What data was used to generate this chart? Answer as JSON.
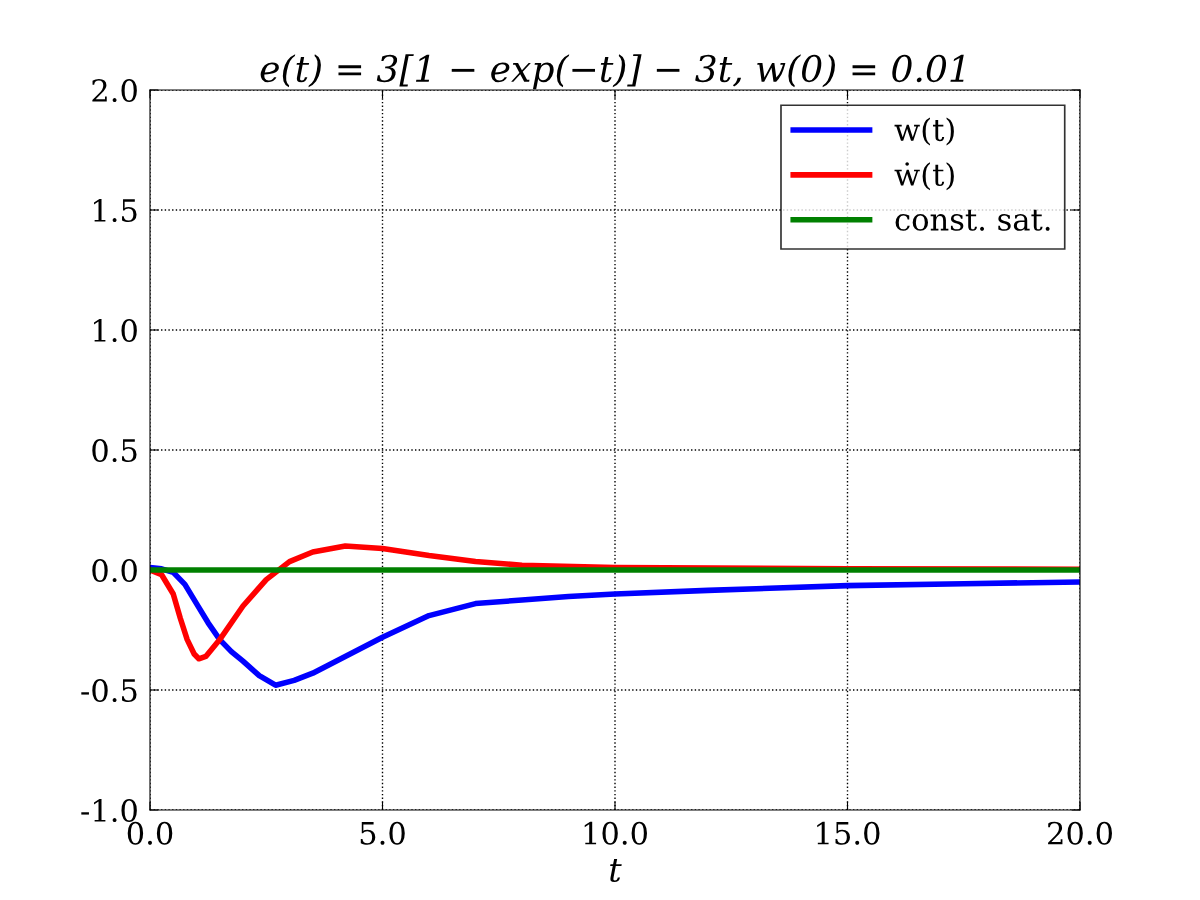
{
  "chart_data": {
    "type": "line",
    "title": "e(t) = 3[1 − exp(−t)] − 3t, w(0) = 0.01",
    "xlabel": "t",
    "series": [
      {
        "name": "w(t)",
        "color": "#0000ff",
        "x": [
          0,
          0.25,
          0.5,
          0.75,
          1,
          1.25,
          1.5,
          1.75,
          2,
          2.35,
          2.7,
          3.1,
          3.5,
          4,
          4.5,
          5,
          6,
          7,
          8,
          9,
          10,
          12,
          15,
          17.5,
          20
        ],
        "values": [
          0.01,
          0.005,
          -0.01,
          -0.06,
          -0.14,
          -0.22,
          -0.29,
          -0.34,
          -0.38,
          -0.44,
          -0.48,
          -0.46,
          -0.43,
          -0.38,
          -0.33,
          -0.28,
          -0.19,
          -0.14,
          -0.125,
          -0.11,
          -0.1,
          -0.085,
          -0.065,
          -0.057,
          -0.05
        ]
      },
      {
        "name": "ẇ(t)",
        "color": "#ff0000",
        "x": [
          0,
          0.25,
          0.5,
          0.65,
          0.8,
          0.95,
          1.05,
          1.2,
          1.5,
          2,
          2.5,
          3,
          3.5,
          4.2,
          5,
          6,
          7,
          8,
          10,
          15,
          20
        ],
        "values": [
          0,
          -0.02,
          -0.1,
          -0.2,
          -0.29,
          -0.35,
          -0.37,
          -0.36,
          -0.29,
          -0.15,
          -0.04,
          0.035,
          0.075,
          0.1,
          0.09,
          0.06,
          0.035,
          0.02,
          0.01,
          0.005,
          0.003
        ]
      },
      {
        "name": "const. sat.",
        "color": "#008000",
        "x": [
          0,
          20
        ],
        "values": [
          0,
          0
        ]
      }
    ],
    "xlim": [
      0,
      20
    ],
    "ylim": [
      -1,
      2
    ],
    "xticks": [
      {
        "value": 0,
        "label": "0.0"
      },
      {
        "value": 5,
        "label": "5.0"
      },
      {
        "value": 10,
        "label": "10.0"
      },
      {
        "value": 15,
        "label": "15.0"
      },
      {
        "value": 20,
        "label": "20.0"
      }
    ],
    "yticks": [
      {
        "value": -1,
        "label": "-1.0"
      },
      {
        "value": -0.5,
        "label": "-0.5"
      },
      {
        "value": 0,
        "label": "0.0"
      },
      {
        "value": 0.5,
        "label": "0.5"
      },
      {
        "value": 1,
        "label": "1.0"
      },
      {
        "value": 1.5,
        "label": "1.5"
      },
      {
        "value": 2,
        "label": "2.0"
      }
    ],
    "grid": true,
    "legend": "top right",
    "line_style": "solid"
  }
}
